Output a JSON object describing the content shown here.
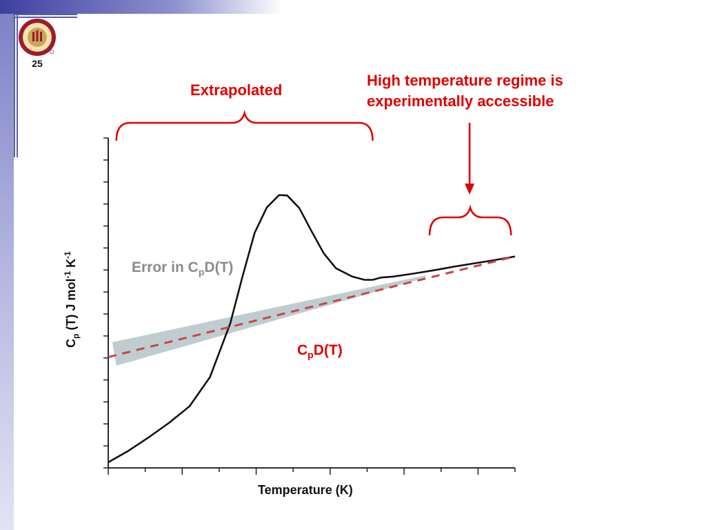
{
  "slide": {
    "number": "25",
    "logo": {
      "name": "florida-state-university-seal",
      "text": "FLORIDA STATE UNIVERSITY 1851"
    }
  },
  "colors": {
    "accent_red": "#e00000",
    "curve_black": "#111111",
    "dashed_fit": "#cc4444",
    "error_band": "#a9bcc2",
    "frame_blue": "#5a5eaa"
  },
  "annotations": {
    "extrapolated": "Extrapolated",
    "high_temp_line1": "High temperature regime is",
    "high_temp_line2": "experimentally accessible",
    "error_prefix": "Error in C",
    "error_sub": "p",
    "error_suffix": "D(T)",
    "cpd_main": "C",
    "cpd_sub": "p",
    "cpd_suffix": "D(T)"
  },
  "chart_data": {
    "type": "line",
    "xlabel": "Temperature (K)",
    "ylabel_parts": {
      "c": "C",
      "sub": "p",
      "mid": " (T) J mol",
      "sup1": "-1",
      "k": " K",
      "sup2": "-1"
    },
    "xlim": [
      0,
      1
    ],
    "ylim": [
      0,
      1
    ],
    "x_ticks_major": 5,
    "y_ticks_count": 15,
    "tick_labels_shown": false,
    "grid": false,
    "series": [
      {
        "style": "solid-black",
        "points": [
          [
            0.0,
            0.017
          ],
          [
            0.05,
            0.052
          ],
          [
            0.1,
            0.093
          ],
          [
            0.15,
            0.137
          ],
          [
            0.2,
            0.187
          ],
          [
            0.25,
            0.275
          ],
          [
            0.3,
            0.438
          ],
          [
            0.33,
            0.58
          ],
          [
            0.36,
            0.713
          ],
          [
            0.39,
            0.79
          ],
          [
            0.42,
            0.827
          ],
          [
            0.44,
            0.826
          ],
          [
            0.47,
            0.787
          ],
          [
            0.5,
            0.717
          ],
          [
            0.53,
            0.65
          ],
          [
            0.56,
            0.605
          ],
          [
            0.6,
            0.58
          ],
          [
            0.63,
            0.57
          ],
          [
            0.65,
            0.57
          ],
          [
            0.67,
            0.577
          ],
          [
            0.7,
            0.58
          ],
          [
            0.75,
            0.589
          ],
          [
            0.8,
            0.599
          ],
          [
            0.85,
            0.61
          ],
          [
            0.9,
            0.62
          ],
          [
            0.95,
            0.63
          ],
          [
            1.0,
            0.641
          ]
        ]
      },
      {
        "style": "dashed-red",
        "points": [
          [
            0.0,
            0.336
          ],
          [
            1.0,
            0.641
          ]
        ]
      }
    ],
    "error_band": {
      "upper": [
        [
          0.01,
          0.381
        ],
        [
          0.78,
          0.584
        ]
      ],
      "lower": [
        [
          0.02,
          0.31
        ],
        [
          0.78,
          0.577
        ]
      ]
    },
    "brackets": [
      {
        "x_from": 0.02,
        "x_to": 0.65,
        "label": "Extrapolated"
      },
      {
        "x_from": 0.79,
        "x_to": 0.99,
        "label": "High temperature regime is experimentally accessible"
      }
    ]
  }
}
